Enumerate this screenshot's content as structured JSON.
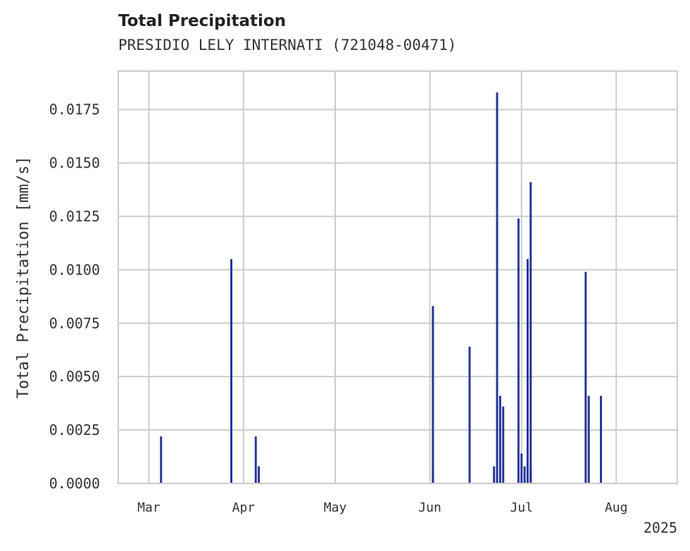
{
  "title": "Total Precipitation",
  "subtitle": "PRESIDIO LELY INTERNATI (721048-00471)",
  "chart_data": {
    "type": "bar",
    "ylabel": "Total Precipitation [mm/s]",
    "xlabel": "",
    "year_label": "2025",
    "x_range": [
      "2025-02-19",
      "2025-08-21"
    ],
    "ylim": [
      0,
      0.0193
    ],
    "y_ticks": [
      "0.0000",
      "0.0025",
      "0.0050",
      "0.0075",
      "0.0100",
      "0.0125",
      "0.0150",
      "0.0175"
    ],
    "x_ticks": [
      {
        "label": "Mar",
        "date": "2025-03-01"
      },
      {
        "label": "Apr",
        "date": "2025-04-01"
      },
      {
        "label": "May",
        "date": "2025-05-01"
      },
      {
        "label": "Jun",
        "date": "2025-06-01"
      },
      {
        "label": "Jul",
        "date": "2025-07-01"
      },
      {
        "label": "Aug",
        "date": "2025-08-01"
      }
    ],
    "grid": true,
    "color": "#28359a",
    "bars": [
      {
        "date": "2025-03-05",
        "value": 0.0022
      },
      {
        "date": "2025-03-28",
        "value": 0.0105
      },
      {
        "date": "2025-04-05",
        "value": 0.0022
      },
      {
        "date": "2025-04-06",
        "value": 0.0008
      },
      {
        "date": "2025-06-02",
        "value": 0.0083
      },
      {
        "date": "2025-06-02",
        "value": 0.0008
      },
      {
        "date": "2025-06-14",
        "value": 0.0064
      },
      {
        "date": "2025-06-22",
        "value": 0.0008
      },
      {
        "date": "2025-06-23",
        "value": 0.0183
      },
      {
        "date": "2025-06-24",
        "value": 0.0041
      },
      {
        "date": "2025-06-25",
        "value": 0.0036
      },
      {
        "date": "2025-06-30",
        "value": 0.0124
      },
      {
        "date": "2025-07-01",
        "value": 0.0014
      },
      {
        "date": "2025-07-02",
        "value": 0.0008
      },
      {
        "date": "2025-07-03",
        "value": 0.0105
      },
      {
        "date": "2025-07-04",
        "value": 0.0141
      },
      {
        "date": "2025-07-04",
        "value": 0.0008
      },
      {
        "date": "2025-07-22",
        "value": 0.0099
      },
      {
        "date": "2025-07-23",
        "value": 0.0041
      },
      {
        "date": "2025-07-27",
        "value": 0.0041
      }
    ]
  }
}
